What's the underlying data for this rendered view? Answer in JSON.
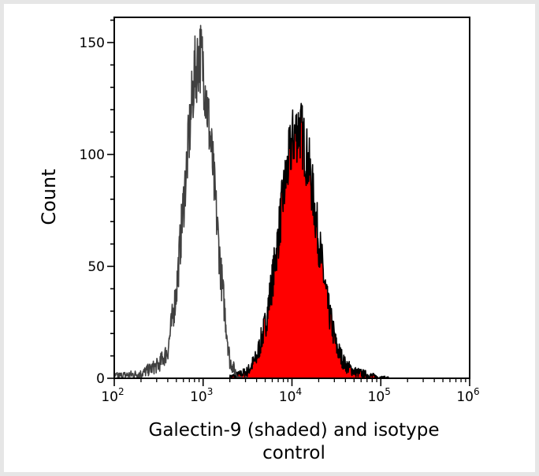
{
  "chart_data": {
    "type": "area",
    "title": "",
    "xlabel_lines": [
      "Galectin-9 (shaded) and isotype",
      "control"
    ],
    "ylabel": "Count",
    "xscale": "log",
    "xlim": [
      100,
      1000000
    ],
    "ylim": [
      0,
      160
    ],
    "x_ticks": [
      {
        "base": "10",
        "exp": "2"
      },
      {
        "base": "10",
        "exp": "3"
      },
      {
        "base": "10",
        "exp": "4"
      },
      {
        "base": "10",
        "exp": "5"
      },
      {
        "base": "10",
        "exp": "6"
      }
    ],
    "y_ticks": [
      "0",
      "50",
      "100",
      "150"
    ],
    "y_tick_values": [
      0,
      50,
      100,
      150
    ],
    "grid": false,
    "series": [
      {
        "role": "isotype control",
        "style": "outline",
        "color": "#404040",
        "x": [
          100,
          200,
          251,
          316,
          398,
          501,
          631,
          794,
          912,
          1000,
          1259,
          1585,
          1995,
          2512,
          3162
        ],
        "y": [
          1,
          2,
          4,
          6,
          12,
          39,
          88,
          135,
          145,
          140,
          99,
          47,
          8,
          0,
          0
        ]
      },
      {
        "role": "Galectin-9",
        "style": "shaded",
        "color": "#ff0000",
        "outline": "#000000",
        "x": [
          1995,
          2512,
          3162,
          3981,
          5012,
          6310,
          7943,
          10000,
          11749,
          12589,
          15849,
          19953,
          25119,
          31623,
          39811,
          50119,
          63096,
          79433,
          100000,
          125893
        ],
        "y": [
          0.5,
          1.5,
          3,
          9,
          24,
          49,
          81,
          106,
          112,
          111,
          93,
          62,
          33,
          14,
          6,
          3,
          2,
          1,
          0.3,
          0
        ]
      }
    ]
  }
}
